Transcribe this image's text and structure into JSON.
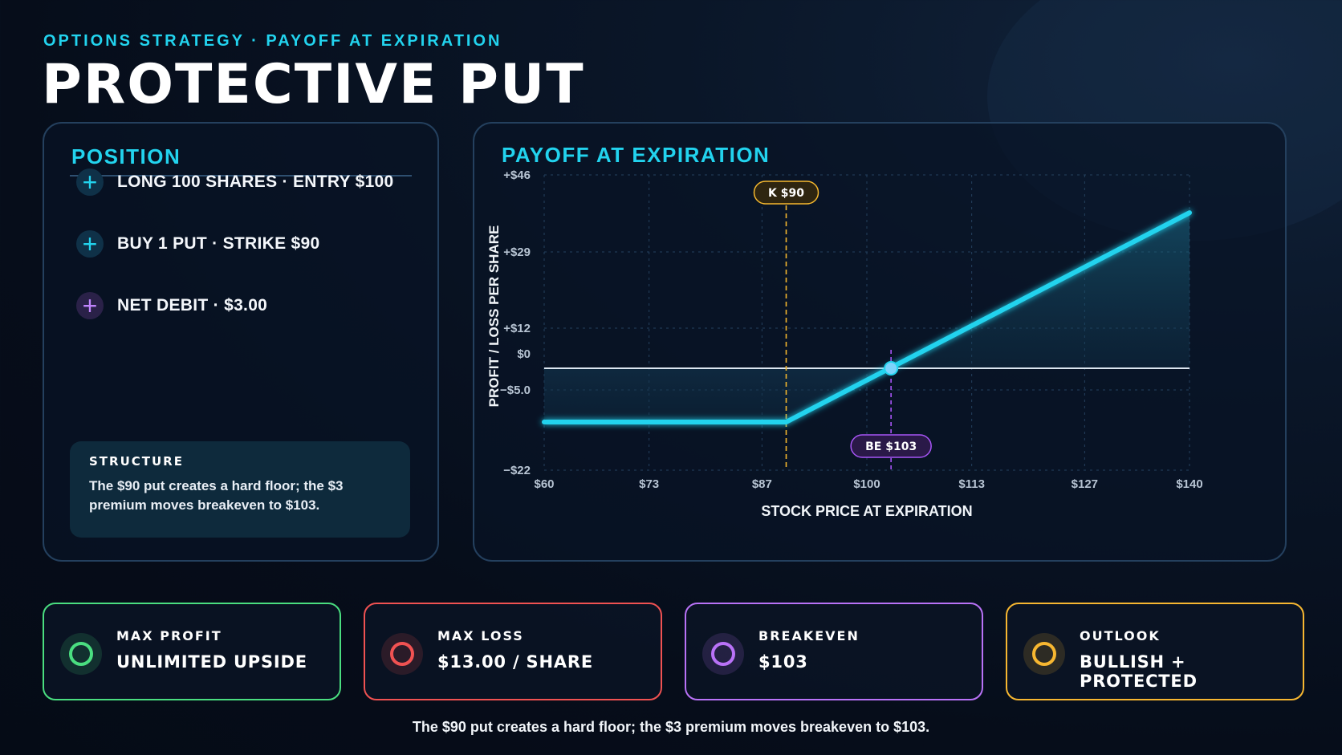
{
  "eyebrow": "OPTIONS STRATEGY · PAYOFF AT EXPIRATION",
  "title": "PROTECTIVE PUT",
  "position": {
    "heading": "POSITION",
    "items": [
      {
        "icon": "plus-icon",
        "label": "LONG 100 SHARES · ENTRY $100",
        "color": "#22d3ee"
      },
      {
        "icon": "plus-icon",
        "label": "BUY 1 PUT · STRIKE $90",
        "color": "#22d3ee"
      },
      {
        "icon": "plus-icon",
        "label": "NET DEBIT · $3.00",
        "color": "#c084fc"
      }
    ],
    "structure_title": "STRUCTURE",
    "structure_text": "The $90 put creates a hard floor; the $3 premium moves breakeven to $103."
  },
  "chart_panel": {
    "heading": "PAYOFF AT EXPIRATION"
  },
  "chart_data": {
    "type": "line",
    "title": "PAYOFF AT EXPIRATION",
    "xlabel": "STOCK PRICE AT EXPIRATION",
    "ylabel": "PROFIT / LOSS PER SHARE",
    "xlim": [
      60,
      140
    ],
    "ylim": [
      -22,
      46
    ],
    "x_ticks": [
      60,
      73,
      87,
      100,
      113,
      127,
      140
    ],
    "x_tick_labels": [
      "$60",
      "$73",
      "$87",
      "$100",
      "$113",
      "$127",
      "$140"
    ],
    "y_ticks": [
      46,
      29,
      12,
      0,
      -5,
      -22
    ],
    "y_tick_labels": [
      "+$46",
      "+$29",
      "+$12",
      "$0",
      "−$5.0",
      "−$22"
    ],
    "grid": true,
    "series": [
      {
        "x": [
          60,
          90,
          140
        ],
        "y": [
          -13,
          -13,
          37
        ]
      }
    ],
    "annotations": [
      {
        "label": "K $90",
        "x": 90,
        "position": "top"
      },
      {
        "label": "BE $103",
        "x": 103,
        "position": "bottom"
      }
    ],
    "colors": {
      "line": "#22d3ee",
      "strike": "#f5b82e",
      "breakeven": "#a855f7",
      "zero": "#dce6f0"
    }
  },
  "metrics": [
    {
      "label": "MAX PROFIT",
      "value": "UNLIMITED UPSIDE",
      "color": "#4ade80"
    },
    {
      "label": "MAX LOSS",
      "value": "$13.00 / SHARE",
      "color": "#f05252"
    },
    {
      "label": "BREAKEVEN",
      "value": "$103",
      "color": "#b972f7"
    },
    {
      "label": "OUTLOOK",
      "value": "BULLISH + PROTECTED",
      "color": "#f7b731"
    }
  ],
  "footer": "The $90 put creates a hard floor; the $3 premium moves breakeven to $103."
}
